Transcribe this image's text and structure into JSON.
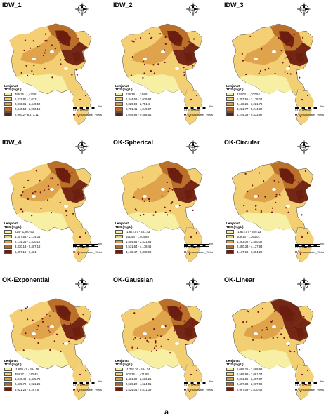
{
  "colors": {
    "class1": "#f7f1a6",
    "class2": "#f3cf74",
    "class3": "#dda04a",
    "class4": "#b76a26",
    "class5": "#6b1d0f",
    "well": "#7a1010"
  },
  "panels": [
    {
      "title": "IDW_1",
      "legend_title": "Lenjanat",
      "legend_unit": "TDS (mg/L)",
      "classes": [
        "486.15 - 1,432.8",
        "1,432.81 - 2,013",
        "2,013.01 - 2,440.52",
        "2,440.53 - 2,990.19",
        "2,990.2 - 8,273.11"
      ]
    },
    {
      "title": "IDW_2",
      "legend_title": "Lenjanat",
      "legend_unit": "TDS (mg/L)",
      "classes": [
        "226.39 - 1,344.61",
        "1,344.62 - 2,029.97",
        "2,029.98 - 2,751.4",
        "2,751.41 - 4,049.97",
        "4,049.98 - 9,388.56"
      ]
    },
    {
      "title": "IDW_3",
      "legend_title": "Lenjanat",
      "legend_unit": "TDS (mg/L)",
      "classes": [
        "224.03 - 1,307.54",
        "1,307.55 - 2,138.24",
        "2,138.25 - 3,221.76",
        "3,221.77 - 5,244.32",
        "5,244.33 - 9,433.92"
      ]
    },
    {
      "title": "IDW_4",
      "legend_title": "Lenjanat",
      "legend_unit": "TDS (mg/L)",
      "classes": [
        "224 - 1,307.53",
        "1,307.54 - 2,174.35",
        "2,174.36 - 3,330.12",
        "3,330.13 - 5,497.18",
        "5,497.19 - 9,434"
      ]
    },
    {
      "title": "OK-Spherical",
      "legend_title": "Lenjanat",
      "legend_unit": "TDS (mg/L)",
      "classes": [
        "-1,672.57 - 451.43",
        "451.44 - 1,404.85",
        "1,404.86 - 2,531.63",
        "2,531.64 - 4,178.46",
        "4,178.47 - 9,378.96"
      ]
    },
    {
      "title": "OK-Circular",
      "legend_title": "Lenjanat",
      "legend_unit": "TDS (mg/L)",
      "classes": [
        "-1,672.57 - 409.13",
        "409.14 - 1,363.01",
        "1,363.02 - 2,490.32",
        "2,490.33 - 4,137.94",
        "4,137.95 - 9,384.29"
      ]
    },
    {
      "title": "OK-Exponential",
      "legend_title": "Lenjanat",
      "legend_unit": "TDS (mg/L)",
      "classes": [
        "-1,670.47 - 394.16",
        "394.17 - 1,340.45",
        "1,340.46 - 2,415.78",
        "2,415.79 - 3,921.25",
        "3,921.26 - 8,297.9"
      ]
    },
    {
      "title": "OK-Gaussian",
      "legend_title": "Lenjanat",
      "legend_unit": "TDS (mg/L)",
      "classes": [
        "-1,792.76 - 504.24",
        "504.25 - 1,431.88",
        "1,431.89 - 2,536.21",
        "2,536.22 - 4,524.01",
        "4,524.01 - 9,471.39"
      ]
    },
    {
      "title": "OK-Linear",
      "legend_title": "Lenjanat",
      "legend_unit": "TDS (mg/L)",
      "classes": [
        "1,088.25 - 1,589.98",
        "1,589.99 - 2,061.04",
        "2,061.05 - 2,497.37",
        "2,497.38 - 2,967.08",
        "2,967.09 - 3,810.42"
      ]
    }
  ],
  "scale": {
    "ticks": "0 2.5 5 10 15 20",
    "unit": "Km"
  },
  "wells_label": "Groundwater_Wells",
  "caption": "a"
}
